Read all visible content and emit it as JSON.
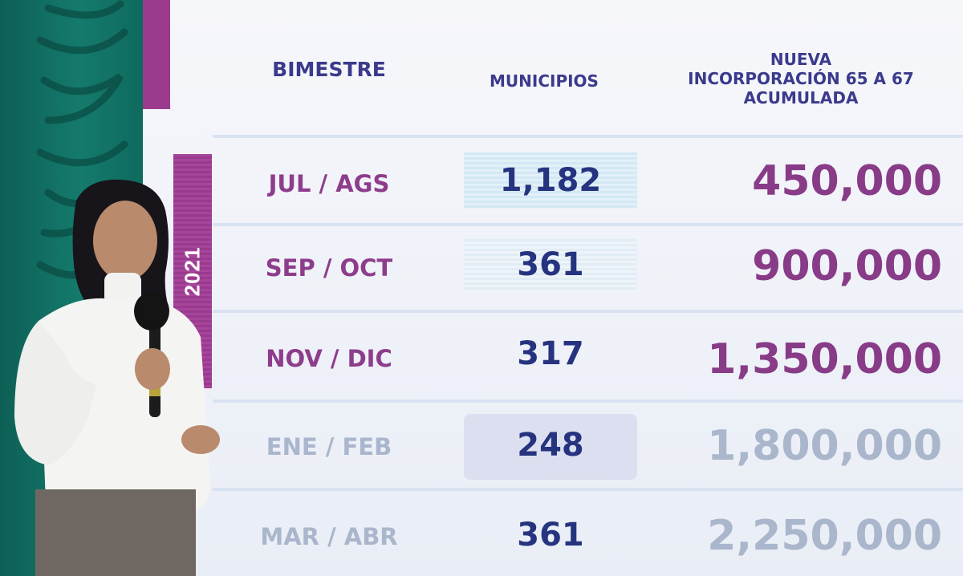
{
  "year": "2021",
  "headers": {
    "bimestre": "BIMESTRE",
    "municipios": "MUNICIPIOS",
    "nueva_1": "NUEVA",
    "nueva_2": "INCORPORACIÓN 65 A 67",
    "nueva_3": "ACUMULADA"
  },
  "rows": [
    {
      "period": "JUL / AGS",
      "municipios": "1,182",
      "total": "450,000"
    },
    {
      "period": "SEP / OCT",
      "municipios": "361",
      "total": "900,000"
    },
    {
      "period": "NOV / DIC",
      "municipios": "317",
      "total": "1,350,000"
    },
    {
      "period": "ENE / FEB",
      "municipios": "248",
      "total": "1,800,000"
    },
    {
      "period": "MAR / ABR",
      "municipios": "361",
      "total": "2,250,000"
    }
  ],
  "colors": {
    "accent_purple": "#9b3b8e",
    "header_blue": "#3b3a8c",
    "muted_gray_blue": "#a9b6cc",
    "teal_wall": "#0f6e62"
  }
}
